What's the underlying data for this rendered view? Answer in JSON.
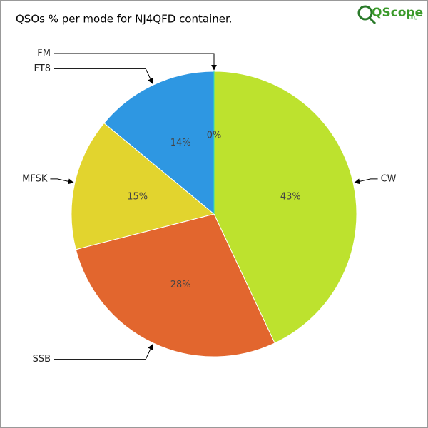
{
  "chart_data": {
    "type": "pie",
    "title": "QSOs % per mode for NJ4QFD container.",
    "logo": "QScope",
    "logo_suffix": ".org",
    "categories": [
      "CW",
      "SSB",
      "MFSK",
      "FT8",
      "FM"
    ],
    "values": [
      43,
      28,
      15,
      14,
      0
    ],
    "value_labels": [
      "43%",
      "28%",
      "15%",
      "14%",
      "0%"
    ],
    "colors": [
      "#bde22e",
      "#e2662e",
      "#e2d42e",
      "#2e97e2",
      "#2ee2b5"
    ]
  }
}
